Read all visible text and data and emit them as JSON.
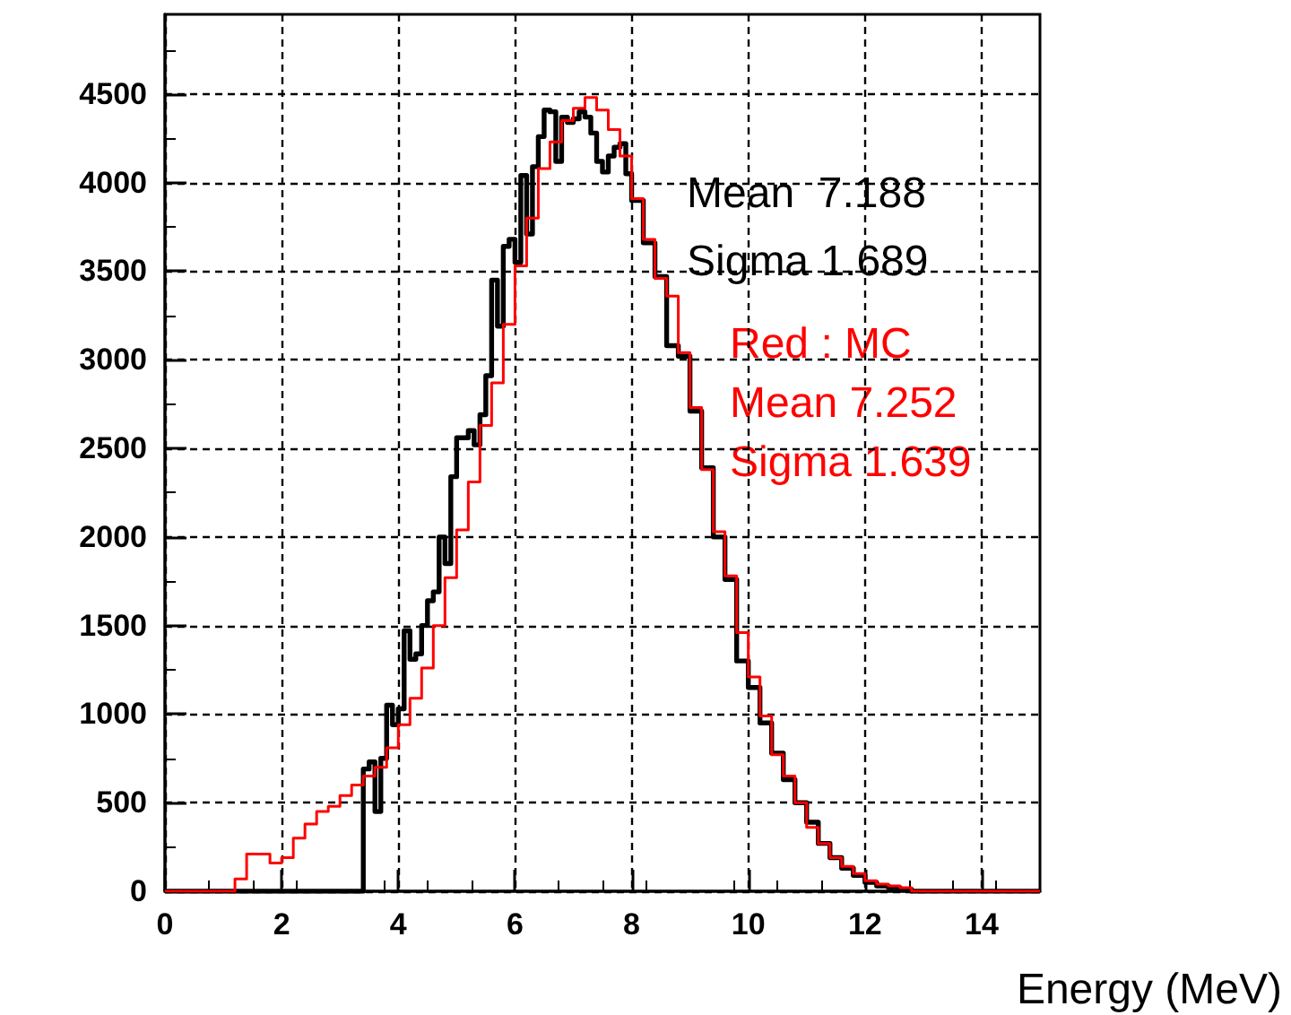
{
  "chart_data": {
    "type": "step",
    "xlabel": "Energy (MeV)",
    "xlim": [
      0,
      15
    ],
    "xticks": [
      0,
      2,
      4,
      6,
      8,
      10,
      12,
      14
    ],
    "ylim": [
      0,
      4950
    ],
    "yticks": [
      0,
      500,
      1000,
      1500,
      2000,
      2500,
      3000,
      3500,
      4000,
      4500
    ],
    "grid": true,
    "marker": "none",
    "line_style": "solid",
    "annotations": [
      "Mean  7.188",
      "Sigma 1.689",
      "Red : MC",
      "Mean 7.252",
      "Sigma 1.639"
    ],
    "series": [
      {
        "color": "#000000",
        "x": [
          0,
          3.4,
          3.5,
          3.6,
          3.7,
          3.8,
          3.9,
          4.0,
          4.1,
          4.2,
          4.3,
          4.4,
          4.5,
          4.6,
          4.7,
          4.8,
          4.9,
          5.0,
          5.1,
          5.2,
          5.3,
          5.4,
          5.5,
          5.6,
          5.7,
          5.8,
          5.9,
          6.0,
          6.1,
          6.2,
          6.3,
          6.4,
          6.5,
          6.6,
          6.7,
          6.8,
          6.9,
          7.0,
          7.1,
          7.2,
          7.3,
          7.4,
          7.5,
          7.6,
          7.7,
          7.8,
          7.9,
          8.0,
          8.2,
          8.4,
          8.6,
          8.8,
          9.0,
          9.2,
          9.4,
          9.6,
          9.8,
          10.0,
          10.2,
          10.4,
          10.6,
          10.8,
          11.0,
          11.2,
          11.4,
          11.6,
          11.8,
          12.0,
          12.2,
          12.4,
          12.6,
          12.8,
          15
        ],
        "values": [
          0,
          690,
          730,
          450,
          750,
          1050,
          940,
          1030,
          1470,
          1310,
          1340,
          1500,
          1640,
          1690,
          2000,
          1850,
          2340,
          2560,
          2560,
          2600,
          2520,
          2690,
          2910,
          3450,
          3190,
          3640,
          3680,
          3550,
          4040,
          3710,
          4090,
          4260,
          4410,
          4400,
          4120,
          4370,
          4340,
          4360,
          4400,
          4370,
          4280,
          4120,
          4060,
          4150,
          4200,
          4220,
          4050,
          3900,
          3660,
          3470,
          3080,
          3020,
          2710,
          2390,
          2000,
          1760,
          1300,
          1150,
          950,
          780,
          630,
          500,
          390,
          270,
          190,
          130,
          90,
          50,
          30,
          20,
          10,
          0,
          0
        ]
      },
      {
        "color": "#ff0000",
        "x": [
          0,
          1.2,
          1.4,
          1.8,
          2.0,
          2.2,
          2.4,
          2.6,
          2.8,
          3.0,
          3.2,
          3.4,
          3.6,
          3.8,
          4.0,
          4.2,
          4.4,
          4.6,
          4.8,
          5.0,
          5.2,
          5.4,
          5.6,
          5.8,
          6.0,
          6.2,
          6.4,
          6.6,
          6.8,
          7.0,
          7.2,
          7.4,
          7.6,
          7.8,
          8.0,
          8.2,
          8.4,
          8.6,
          8.8,
          9.0,
          9.2,
          9.4,
          9.6,
          9.8,
          10.0,
          10.2,
          10.4,
          10.6,
          10.8,
          11.0,
          11.2,
          11.4,
          11.6,
          11.8,
          12.0,
          12.2,
          12.4,
          12.6,
          12.8,
          15
        ],
        "values": [
          0,
          70,
          210,
          160,
          190,
          300,
          380,
          450,
          480,
          540,
          600,
          650,
          700,
          810,
          940,
          1090,
          1260,
          1500,
          1770,
          2040,
          2310,
          2630,
          2870,
          3200,
          3530,
          3800,
          4080,
          4230,
          4350,
          4420,
          4480,
          4410,
          4300,
          4150,
          3910,
          3680,
          3460,
          3360,
          3040,
          2730,
          2380,
          2030,
          1780,
          1460,
          1210,
          990,
          770,
          650,
          500,
          360,
          270,
          190,
          140,
          100,
          60,
          40,
          30,
          20,
          0,
          0
        ]
      }
    ]
  }
}
